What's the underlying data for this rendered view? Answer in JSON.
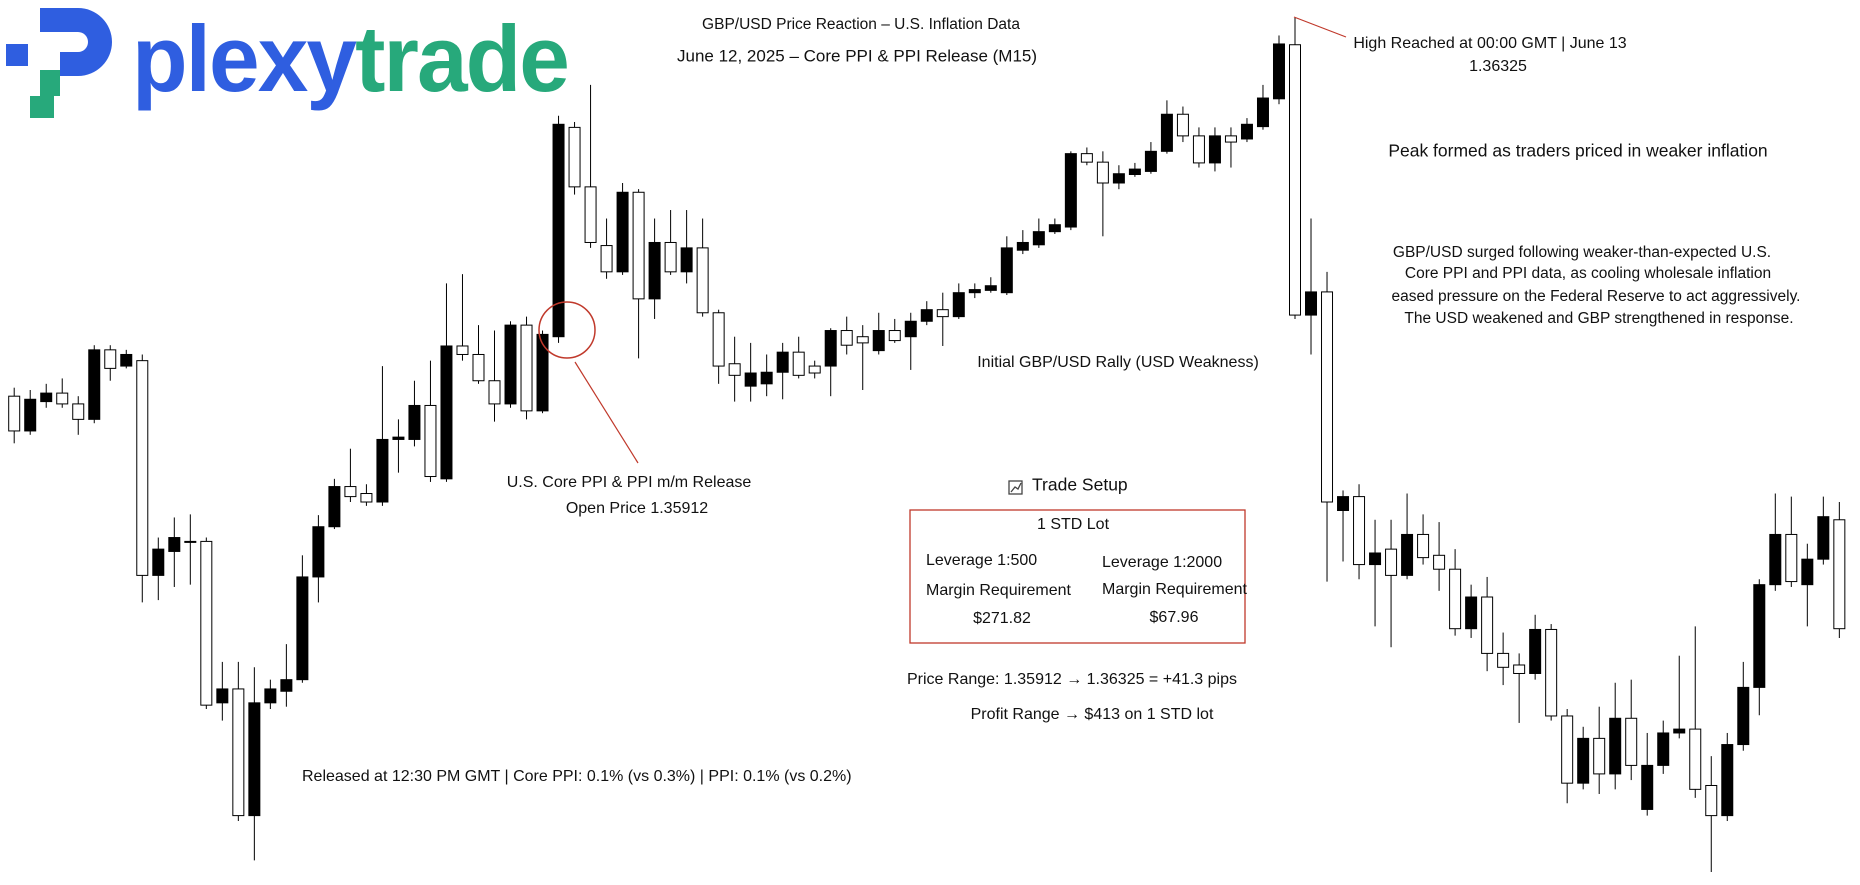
{
  "logo": [
    "plexy",
    "trade"
  ],
  "annotations": {
    "high_label": "High Reached at 00:00 GMT | June 13",
    "peak_note": "Peak formed as traders priced in weaker inflation",
    "explanation": [
      "GBP/USD surged following weaker-than-expected U.S.",
      "Core PPI and PPI data, as cooling wholesale inflation",
      "eased pressure on the Federal Reserve to act aggressively.",
      "The USD weakened and GBP strengthened in response."
    ],
    "rally_label": "Initial GBP/USD Rally (USD Weakness)",
    "release_label": "U.S. Core PPI & PPI m/m Release",
    "open_price_label": "Open Price",
    "release_details": "Released at 12:30 PM GMT | Core PPI: 0.1% (vs 0.3%) | PPI:  0.1% (vs 0.2%)",
    "trade_setup": {
      "title": "Trade Setup",
      "lot": "1 STD Lot",
      "columns": [
        {
          "leverage": "Leverage 1:500",
          "requirement": "Margin Requirement",
          "margin": "$271.82"
        },
        {
          "leverage": "Leverage 1:2000",
          "requirement": "Margin Requirement",
          "margin": "$67.96"
        }
      ]
    },
    "price_range": "Price Range: 1.35912 → 1.36325 = +41.3 pips",
    "profit_range": "Profit Range → $413 on 1 STD lot"
  },
  "chart_data": {
    "type": "candlestick",
    "title": "GBP/USD Price Reaction – U.S. Inflation Data",
    "subtitle": "June 12, 2025 – Core PPI & PPI Release (M15)",
    "up_color": "#000000",
    "down_color": "#ffffff",
    "outline_color": "#000000",
    "open": [
      1.35835,
      1.3579,
      1.35828,
      1.35839,
      1.35825,
      1.35805,
      1.35895,
      1.35874,
      1.35881,
      1.35603,
      1.35634,
      1.35647,
      1.35647,
      1.35438,
      1.35456,
      1.35292,
      1.35438,
      1.35453,
      1.35468,
      1.35601,
      1.35666,
      1.35718,
      1.35709,
      1.35698,
      1.35779,
      1.35779,
      1.35823,
      1.35728,
      1.359,
      1.35889,
      1.35855,
      1.35825,
      1.35927,
      1.35816,
      1.35912,
      1.36183,
      1.36106,
      1.3603,
      1.35996,
      1.36099,
      1.35961,
      1.36034,
      1.35996,
      1.36027,
      1.35943,
      1.35877,
      1.35848,
      1.35851,
      1.35866,
      1.35892,
      1.35874,
      1.35874,
      1.3592,
      1.35912,
      1.35894,
      1.3592,
      1.35912,
      1.35932,
      1.35947,
      1.35938,
      1.35969,
      1.35972,
      1.35969,
      1.36024,
      1.36031,
      1.36048,
      1.36054,
      1.36149,
      1.36138,
      1.36111,
      1.36122,
      1.36126,
      1.36152,
      1.362,
      1.36172,
      1.36137,
      1.36172,
      1.36168,
      1.36184,
      1.3622,
      1.3629,
      1.3594,
      1.3597,
      1.35687,
      1.35705,
      1.35617,
      1.35637,
      1.35603,
      1.35656,
      1.35629,
      1.35611,
      1.35534,
      1.35575,
      1.35502,
      1.35487,
      1.35476,
      1.35533,
      1.35421,
      1.35334,
      1.35392,
      1.35346,
      1.35418,
      1.353,
      1.35357,
      1.35399,
      1.35404,
      1.35331,
      1.35292,
      1.35384,
      1.35458,
      1.35591,
      1.35656,
      1.35591,
      1.35624,
      1.35675
    ],
    "high": [
      1.35846,
      1.35843,
      1.35851,
      1.35858,
      1.35835,
      1.35901,
      1.35901,
      1.35895,
      1.35889,
      1.35652,
      1.35678,
      1.35682,
      1.35652,
      1.35491,
      1.35491,
      1.35484,
      1.35468,
      1.35514,
      1.35629,
      1.35681,
      1.35728,
      1.35767,
      1.35721,
      1.35874,
      1.35805,
      1.35855,
      1.35881,
      1.35981,
      1.35993,
      1.35927,
      1.3592,
      1.35932,
      1.35938,
      1.3592,
      1.36198,
      1.3619,
      1.36238,
      1.36065,
      1.36111,
      1.36103,
      1.36065,
      1.36076,
      1.36076,
      1.36065,
      1.35947,
      1.35912,
      1.35904,
      1.35889,
      1.35904,
      1.35912,
      1.35881,
      1.35923,
      1.35938,
      1.35927,
      1.35943,
      1.35935,
      1.35943,
      1.35958,
      1.35969,
      1.35981,
      1.35981,
      1.35989,
      1.36042,
      1.3605,
      1.36065,
      1.36065,
      1.36152,
      1.36157,
      1.36152,
      1.36134,
      1.36137,
      1.36164,
      1.36218,
      1.3621,
      1.36183,
      1.36183,
      1.36183,
      1.36195,
      1.36238,
      1.36302,
      1.36325,
      1.36065,
      1.35996,
      1.35713,
      1.35721,
      1.35675,
      1.35675,
      1.35709,
      1.35682,
      1.35672,
      1.35637,
      1.35591,
      1.35601,
      1.35529,
      1.35502,
      1.35552,
      1.3554,
      1.3543,
      1.35407,
      1.35433,
      1.35464,
      1.35468,
      1.35399,
      1.35415,
      1.35499,
      1.35537,
      1.35369,
      1.35399,
      1.35491,
      1.35598,
      1.35709,
      1.35705,
      1.35644,
      1.35705,
      1.35698
    ],
    "low": [
      1.35774,
      1.35785,
      1.3582,
      1.3582,
      1.35785,
      1.358,
      1.35855,
      1.35871,
      1.35568,
      1.35571,
      1.35588,
      1.35591,
      1.3543,
      1.35415,
      1.35285,
      1.35234,
      1.3543,
      1.35433,
      1.35464,
      1.35568,
      1.35663,
      1.35698,
      1.35693,
      1.35693,
      1.35736,
      1.3577,
      1.35724,
      1.35724,
      1.35881,
      1.35851,
      1.35802,
      1.3582,
      1.35805,
      1.35813,
      1.35904,
      1.36096,
      1.36027,
      1.35987,
      1.35992,
      1.35884,
      1.35935,
      1.35992,
      1.35981,
      1.35938,
      1.35851,
      1.35828,
      1.35828,
      1.35835,
      1.35831,
      1.35858,
      1.35858,
      1.35835,
      1.35889,
      1.35843,
      1.35889,
      1.35904,
      1.35869,
      1.35927,
      1.359,
      1.35935,
      1.35962,
      1.35969,
      1.35966,
      1.36019,
      1.36027,
      1.36045,
      1.3605,
      1.36134,
      1.36042,
      1.36103,
      1.36119,
      1.36123,
      1.36149,
      1.36164,
      1.36131,
      1.36126,
      1.36131,
      1.36164,
      1.3618,
      1.36213,
      1.35935,
      1.35889,
      1.35595,
      1.35621,
      1.35598,
      1.35537,
      1.3551,
      1.35598,
      1.35617,
      1.35583,
      1.35525,
      1.35522,
      1.35479,
      1.35461,
      1.35412,
      1.35468,
      1.35415,
      1.35308,
      1.35326,
      1.3532,
      1.35326,
      1.35338,
      1.35292,
      1.35346,
      1.35392,
      1.35315,
      1.35219,
      1.35285,
      1.35376,
      1.35422,
      1.35583,
      1.35588,
      1.35537,
      1.35617,
      1.35522
    ],
    "close": [
      1.3579,
      1.35831,
      1.35839,
      1.35825,
      1.35805,
      1.35895,
      1.35871,
      1.35889,
      1.35603,
      1.35637,
      1.35652,
      1.35647,
      1.35435,
      1.35456,
      1.35292,
      1.35438,
      1.35456,
      1.35468,
      1.35601,
      1.35666,
      1.35718,
      1.35705,
      1.35698,
      1.35779,
      1.35782,
      1.35823,
      1.35731,
      1.359,
      1.35889,
      1.35855,
      1.35825,
      1.35927,
      1.35816,
      1.35915,
      1.36187,
      1.36106,
      1.36034,
      1.35996,
      1.36099,
      1.35961,
      1.36034,
      1.35996,
      1.36027,
      1.35943,
      1.35874,
      1.35862,
      1.35865,
      1.35866,
      1.35892,
      1.35862,
      1.35865,
      1.3592,
      1.35901,
      1.35904,
      1.3592,
      1.35907,
      1.35932,
      1.35947,
      1.35938,
      1.35969,
      1.35973,
      1.35978,
      1.36027,
      1.36034,
      1.36048,
      1.36057,
      1.36149,
      1.36138,
      1.36111,
      1.36123,
      1.36129,
      1.36152,
      1.362,
      1.36172,
      1.36137,
      1.36172,
      1.36164,
      1.36187,
      1.36221,
      1.36291,
      1.3594,
      1.3597,
      1.35698,
      1.35705,
      1.35617,
      1.35632,
      1.35603,
      1.35656,
      1.35626,
      1.35611,
      1.35534,
      1.35575,
      1.35502,
      1.35484,
      1.35476,
      1.35533,
      1.35421,
      1.35334,
      1.35392,
      1.35346,
      1.35418,
      1.35357,
      1.35357,
      1.35399,
      1.35404,
      1.35326,
      1.35292,
      1.35384,
      1.35458,
      1.35591,
      1.35656,
      1.35595,
      1.35624,
      1.35679,
      1.35534
    ]
  }
}
